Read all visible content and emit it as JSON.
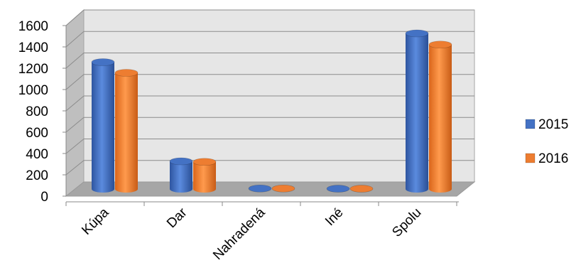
{
  "chart_data": {
    "type": "bar",
    "style": "3d-cylinder",
    "categories": [
      "Kúpa",
      "Dar",
      "Nahradená",
      "Iné",
      "Spolu"
    ],
    "series": [
      {
        "name": "2015",
        "values": [
          1190,
          260,
          5,
          3,
          1460
        ],
        "color": "#4472C4"
      },
      {
        "name": "2016",
        "values": [
          1090,
          255,
          5,
          3,
          1355
        ],
        "color": "#ED7D31"
      }
    ],
    "ylim": [
      0,
      1600
    ],
    "yticks": [
      0,
      200,
      400,
      600,
      800,
      1000,
      1200,
      1400,
      1600
    ],
    "grid": true,
    "legend_position": "right"
  }
}
